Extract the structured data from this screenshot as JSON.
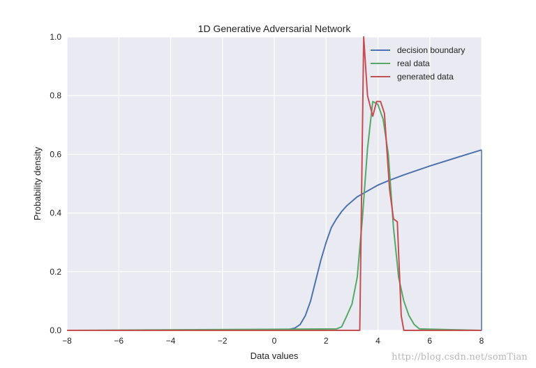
{
  "chart_data": {
    "type": "line",
    "title": "1D Generative Adversarial Network",
    "xlabel": "Data values",
    "ylabel": "Probability density",
    "xlim": [
      -8,
      8
    ],
    "ylim": [
      0,
      1.0
    ],
    "xticks": [
      "−8",
      "−6",
      "−4",
      "−2",
      "0",
      "2",
      "4",
      "6",
      "8"
    ],
    "yticks": [
      "0.0",
      "0.2",
      "0.4",
      "0.6",
      "0.8",
      "1.0"
    ],
    "grid": true,
    "legend_position": "top-right",
    "series": [
      {
        "name": "decision boundary",
        "color": "#4c72b0",
        "x": [
          -8,
          0,
          0.5,
          0.8,
          1.0,
          1.2,
          1.4,
          1.6,
          1.8,
          2.0,
          2.2,
          2.4,
          2.6,
          2.8,
          3.0,
          3.2,
          3.4,
          3.6,
          3.8,
          4.0,
          4.4,
          5.0,
          6.0,
          7.0,
          8.0
        ],
        "y": [
          0.0,
          0.0,
          0.002,
          0.008,
          0.02,
          0.05,
          0.1,
          0.17,
          0.24,
          0.3,
          0.35,
          0.38,
          0.405,
          0.425,
          0.44,
          0.455,
          0.465,
          0.475,
          0.485,
          0.495,
          0.51,
          0.53,
          0.56,
          0.588,
          0.615
        ]
      },
      {
        "name": "real data",
        "color": "#55a868",
        "x": [
          -8,
          2.4,
          2.6,
          2.8,
          3.0,
          3.2,
          3.4,
          3.6,
          3.8,
          4.0,
          4.2,
          4.4,
          4.6,
          4.8,
          5.0,
          5.2,
          5.4,
          5.6,
          8
        ],
        "y": [
          0.0,
          0.005,
          0.012,
          0.05,
          0.09,
          0.18,
          0.38,
          0.62,
          0.78,
          0.77,
          0.72,
          0.6,
          0.35,
          0.18,
          0.1,
          0.05,
          0.02,
          0.005,
          0.0
        ]
      },
      {
        "name": "generated data",
        "color": "#c44e52",
        "x": [
          -8,
          3.2,
          3.3,
          3.45,
          3.6,
          3.8,
          3.95,
          4.1,
          4.25,
          4.45,
          4.6,
          4.75,
          4.9,
          5.0,
          5.1,
          8
        ],
        "y": [
          0.0,
          0.0,
          0.0,
          1.0,
          0.8,
          0.73,
          0.78,
          0.78,
          0.74,
          0.48,
          0.38,
          0.37,
          0.05,
          0.0,
          0.0,
          0.0
        ]
      }
    ]
  },
  "watermark": "http://blog.csdn.net/somTian"
}
